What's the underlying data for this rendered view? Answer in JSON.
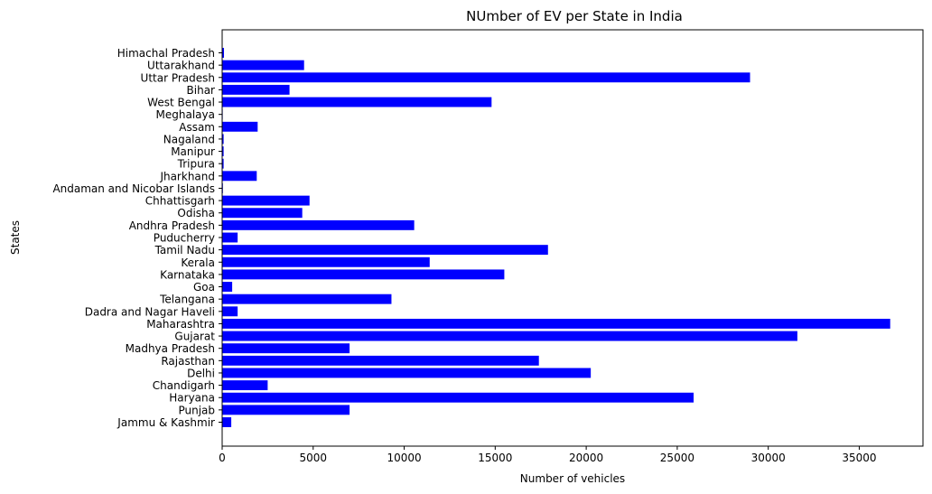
{
  "chart_data": {
    "type": "bar",
    "orientation": "horizontal",
    "title": "NUmber of EV per State in India",
    "xlabel": "Number of vehicles",
    "ylabel": "States",
    "bar_color": "#0000ff",
    "xlim": [
      0,
      38500
    ],
    "xticks": [
      0,
      5000,
      10000,
      15000,
      20000,
      25000,
      30000,
      35000
    ],
    "grid": false,
    "legend": "none",
    "categories": [
      "Jammu & Kashmir",
      "Punjab",
      "Haryana",
      "Chandigarh",
      "Delhi",
      "Rajasthan",
      "Madhya Pradesh",
      "Gujarat",
      "Maharashtra",
      "Dadra and Nagar Haveli",
      "Telangana",
      "Goa",
      "Karnataka",
      "Kerala",
      "Tamil Nadu",
      "Puducherry",
      "Andhra Pradesh",
      "Odisha",
      "Chhattisgarh",
      "Andaman and Nicobar Islands",
      "Jharkhand",
      "Tripura",
      "Manipur",
      "Nagaland",
      "Assam",
      "Meghalaya",
      "West Bengal",
      "Bihar",
      "Uttar Pradesh",
      "Uttarakhand",
      "Himachal Pradesh"
    ],
    "values": [
      500,
      7000,
      25900,
      2500,
      20250,
      17400,
      7000,
      31600,
      36700,
      850,
      9300,
      550,
      15500,
      11400,
      17900,
      850,
      10550,
      4400,
      4800,
      40,
      1900,
      80,
      80,
      80,
      1950,
      30,
      14800,
      3700,
      29000,
      4500,
      100
    ]
  }
}
